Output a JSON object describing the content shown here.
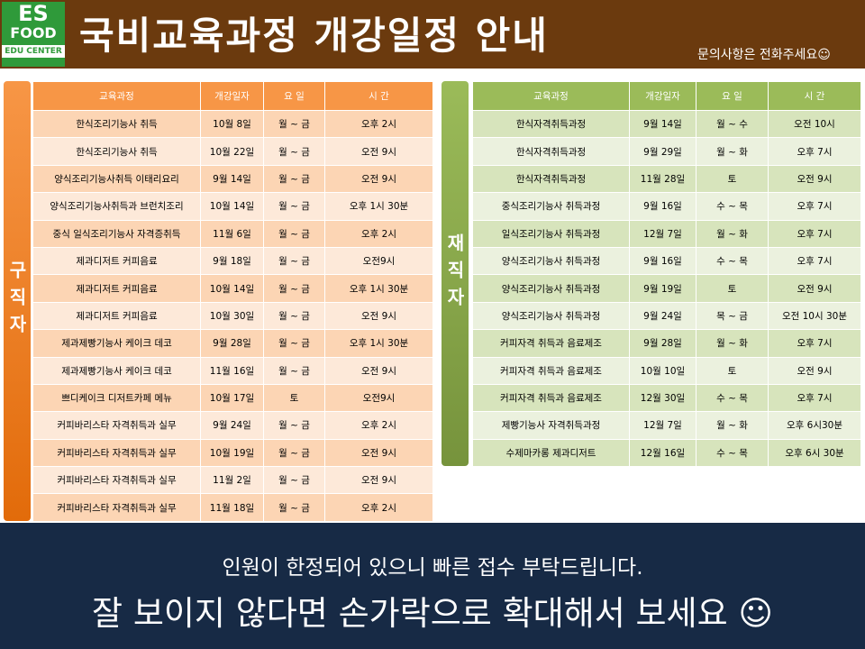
{
  "header": {
    "logo": {
      "top": "ES",
      "middle": "FOOD",
      "bottom": "EDU CENTER"
    },
    "title": "국비교육과정 개강일정 안내",
    "contact": "문의사항은 전화주세요☺"
  },
  "tables": [
    {
      "side_label": "구직자",
      "columns": [
        "교육과정",
        "개강일자",
        "요 일",
        "시 간"
      ],
      "rows": [
        [
          "한식조리기능사 취득",
          "10월 8일",
          "월 ~ 금",
          "오후 2시"
        ],
        [
          "한식조리기능사 취득",
          "10월 22일",
          "월 ~ 금",
          "오전 9시"
        ],
        [
          "양식조리기능사취득 이태리요리",
          "9월 14일",
          "월 ~ 금",
          "오전 9시"
        ],
        [
          "양식조리기능사취득과 브런치조리",
          "10월 14일",
          "월 ~ 금",
          "오후 1시 30분"
        ],
        [
          "중식 일식조리기능사 자격증취득",
          "11월 6일",
          "월 ~ 금",
          "오후 2시"
        ],
        [
          "제과디저트 커피음료",
          "9월 18일",
          "월 ~ 금",
          "오전9시"
        ],
        [
          "제과디저트 커피음료",
          "10월 14일",
          "월 ~ 금",
          "오후 1시 30분"
        ],
        [
          "제과디저트 커피음료",
          "10월 30일",
          "월 ~ 금",
          "오전 9시"
        ],
        [
          "제과제빵기능사 케이크 데코",
          "9월 28일",
          "월 ~ 금",
          "오후 1시 30분"
        ],
        [
          "제과제빵기능사 케이크 데코",
          "11월 16일",
          "월 ~ 금",
          "오전 9시"
        ],
        [
          "쁘디케이크 디저트카페 메뉴",
          "10월 17일",
          "토",
          "오전9시"
        ],
        [
          "커피바리스타 자격취득과 실무",
          "9월 24일",
          "월 ~ 금",
          "오후 2시"
        ],
        [
          "커피바리스타 자격취득과 실무",
          "10월 19일",
          "월 ~ 금",
          "오전 9시"
        ],
        [
          "커피바리스타 자격취득과 실무",
          "11월 2일",
          "월 ~ 금",
          "오전 9시"
        ],
        [
          "커피바리스타 자격취득과 실무",
          "11월 18일",
          "월 ~ 금",
          "오후 2시"
        ]
      ]
    },
    {
      "side_label": "재직자",
      "columns": [
        "교육과정",
        "개강일자",
        "요 일",
        "시 간"
      ],
      "rows": [
        [
          "한식자격취득과정",
          "9월 14일",
          "월 ~ 수",
          "오전 10시"
        ],
        [
          "한식자격취득과정",
          "9월 29일",
          "월 ~ 화",
          "오후 7시"
        ],
        [
          "한식자격취득과정",
          "11월 28일",
          "토",
          "오전 9시"
        ],
        [
          "중식조리기능사 취득과정",
          "9월 16일",
          "수 ~ 목",
          "오후 7시"
        ],
        [
          "일식조리기능사 취득과정",
          "12월 7일",
          "월  ~ 화",
          "오후 7시"
        ],
        [
          "양식조리기능사 취득과정",
          "9월 16일",
          "수 ~ 목",
          "오후 7시"
        ],
        [
          "양식조리기능사 취득과정",
          "9월 19일",
          "토",
          "오전 9시"
        ],
        [
          "양식조리기능사 취득과정",
          "9월 24일",
          "목 ~ 금",
          "오전 10시 30분"
        ],
        [
          "커피자격 취득과 음료제조",
          "9월 28일",
          "월 ~ 화",
          "오후 7시"
        ],
        [
          "커피자격 취득과 음료제조",
          "10월 10일",
          "토",
          "오전 9시"
        ],
        [
          "커피자격 취득과 음료제조",
          "12월 30일",
          "수 ~ 목",
          "오후 7시"
        ],
        [
          "제빵기능사 자격취득과정",
          "12월 7일",
          "월 ~ 화",
          "오후 6시30분"
        ],
        [
          "수제마카롱 제과디저트",
          "12월 16일",
          "수 ~ 목",
          "오후 6시 30분"
        ]
      ]
    }
  ],
  "footer": {
    "line1": "인원이 한정되어 있으니 빠른 접수 부탁드립니다.",
    "line2": "잘 보이지 않다면 손가락으로 확대해서 보세요 ☺"
  }
}
